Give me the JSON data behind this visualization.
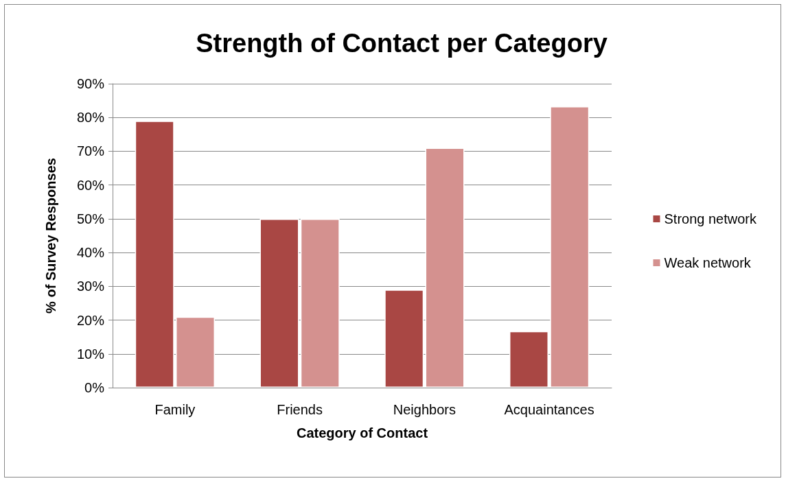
{
  "chart_data": {
    "type": "bar",
    "title": "Strength of Contact per Category",
    "xlabel": "Category of Contact",
    "ylabel": "% of Survey Responses",
    "categories": [
      "Family",
      "Friends",
      "Neighbors",
      "Acquaintances"
    ],
    "series": [
      {
        "name": "Strong network",
        "color": "#a94744",
        "values": [
          79,
          50,
          29,
          16.7
        ]
      },
      {
        "name": "Weak network",
        "color": "#d4918f",
        "values": [
          21,
          50,
          71,
          83.3
        ]
      }
    ],
    "ylim": [
      0,
      90
    ],
    "yticks": [
      {
        "value": 0,
        "label": "0%"
      },
      {
        "value": 10,
        "label": "10%"
      },
      {
        "value": 20,
        "label": "20%"
      },
      {
        "value": 30,
        "label": "30%"
      },
      {
        "value": 40,
        "label": "40%"
      },
      {
        "value": 50,
        "label": "50%"
      },
      {
        "value": 60,
        "label": "60%"
      },
      {
        "value": 70,
        "label": "70%"
      },
      {
        "value": 80,
        "label": "80%"
      },
      {
        "value": 90,
        "label": "90%"
      }
    ],
    "grid": "y",
    "legend": "right"
  }
}
